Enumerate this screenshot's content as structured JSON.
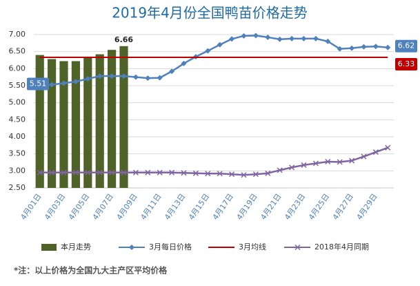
{
  "chart_data": {
    "type": "combo",
    "title": "2019年4月份全国鸭苗价格走势",
    "note": "*注：以上价格为全国九大主产区平均价格",
    "categories": [
      "4月01日",
      null,
      "4月03日",
      null,
      "4月05日",
      null,
      "4月07日",
      null,
      "4月09日",
      null,
      "4月11日",
      null,
      "4月13日",
      null,
      "4月15日",
      null,
      "4月17日",
      null,
      "4月19日",
      null,
      "4月21日",
      null,
      "4月23日",
      null,
      "4月25日",
      null,
      "4月27日",
      null,
      "4月29日",
      null
    ],
    "ylim": [
      2.5,
      7.0
    ],
    "yticks": [
      {
        "value": 2.5,
        "label": "2.50"
      },
      {
        "value": 3.0,
        "label": "3.00"
      },
      {
        "value": 3.5,
        "label": "3.50"
      },
      {
        "value": 4.0,
        "label": "4.00"
      },
      {
        "value": 4.5,
        "label": "4.50"
      },
      {
        "value": 5.0,
        "label": "5.00"
      },
      {
        "value": 5.5,
        "label": "5.50"
      },
      {
        "value": 6.0,
        "label": "6.00"
      },
      {
        "value": 6.5,
        "label": "6.50"
      },
      {
        "value": 7.0,
        "label": "7.00"
      }
    ],
    "grid": true,
    "legend": "bottom",
    "series": [
      {
        "name": "本月走势",
        "type": "bar",
        "color": "#4f6228",
        "values": [
          6.4,
          6.28,
          6.22,
          6.22,
          6.32,
          6.42,
          6.55,
          6.66,
          null,
          null,
          null,
          null,
          null,
          null,
          null,
          null,
          null,
          null,
          null,
          null,
          null,
          null,
          null,
          null,
          null,
          null,
          null,
          null,
          null,
          null
        ]
      },
      {
        "name": "3月每日价格",
        "type": "line",
        "marker": "diamond",
        "color": "#4f81bd",
        "values": [
          5.51,
          5.53,
          5.57,
          5.62,
          5.7,
          5.78,
          5.78,
          5.78,
          5.75,
          5.72,
          5.73,
          5.92,
          6.15,
          6.35,
          6.52,
          6.7,
          6.87,
          6.96,
          6.97,
          6.92,
          6.86,
          6.88,
          6.88,
          6.88,
          6.8,
          6.58,
          6.6,
          6.64,
          6.65,
          6.62
        ]
      },
      {
        "name": "3月均线",
        "type": "line",
        "marker": "none",
        "color": "#c00000",
        "values": [
          6.33,
          6.33,
          6.33,
          6.33,
          6.33,
          6.33,
          6.33,
          6.33,
          6.33,
          6.33,
          6.33,
          6.33,
          6.33,
          6.33,
          6.33,
          6.33,
          6.33,
          6.33,
          6.33,
          6.33,
          6.33,
          6.33,
          6.33,
          6.33,
          6.33,
          6.33,
          6.33,
          6.33,
          6.33,
          6.33
        ]
      },
      {
        "name": "2018年4月同期",
        "type": "line",
        "marker": "x",
        "color": "#8064a2",
        "values": [
          2.95,
          2.95,
          2.95,
          2.95,
          2.95,
          2.95,
          2.95,
          2.95,
          2.95,
          2.95,
          2.95,
          2.95,
          2.94,
          2.93,
          2.92,
          2.92,
          2.9,
          2.88,
          2.9,
          2.93,
          3.02,
          3.1,
          3.17,
          3.22,
          3.27,
          3.26,
          3.3,
          3.42,
          3.55,
          3.68
        ]
      }
    ]
  }
}
